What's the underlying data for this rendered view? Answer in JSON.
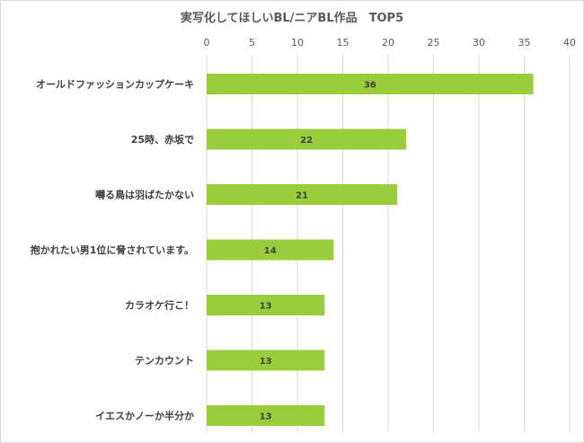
{
  "chart_data": {
    "type": "bar",
    "orientation": "horizontal",
    "title": "実写化してほしいBL/ニアBL作品　TOP5",
    "categories": [
      "オールドファッションカップケーキ",
      "25時、赤坂で",
      "囀る鳥は羽ばたかない",
      "抱かれたい男1位に脅されています。",
      "カラオケ行こ！",
      "テンカウント",
      "イエスかノーか半分か"
    ],
    "values": [
      36,
      22,
      21,
      14,
      13,
      13,
      13
    ],
    "xticks": [
      "0",
      "5",
      "10",
      "15",
      "20",
      "25",
      "30",
      "35",
      "40"
    ],
    "xlim": [
      0,
      40
    ],
    "xaxis_position": "top",
    "grid": true,
    "data_labels": true,
    "bar_color": "#9acd3c"
  }
}
